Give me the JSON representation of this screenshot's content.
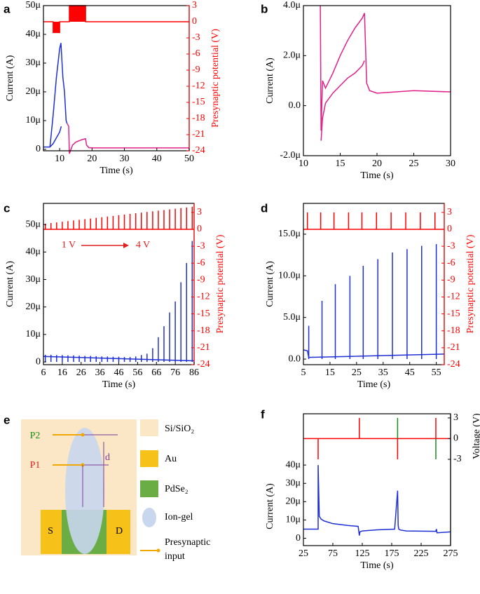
{
  "panel_labels": [
    "a",
    "b",
    "c",
    "d",
    "e",
    "f"
  ],
  "chart_data": [
    {
      "type": "line",
      "xlabel": "Time (s)",
      "ylabel": "Current (A)",
      "y2label": "Presynaptic potential (V)",
      "y2color": "#ff0000",
      "xlim": [
        5,
        50
      ],
      "xticks": [
        10,
        20,
        30,
        40,
        50
      ],
      "ylim": [
        -5e-07,
        5e-05
      ],
      "yticks": [
        0,
        {
          "value": 1e-05,
          "label": "10μ"
        },
        {
          "value": 2e-05,
          "label": "20μ"
        },
        {
          "value": 3e-05,
          "label": "30μ"
        },
        {
          "value": 4e-05,
          "label": "40μ"
        },
        {
          "value": 5e-05,
          "label": "50μ"
        }
      ],
      "y2lim": [
        -24,
        3
      ],
      "y2ticks": [
        3,
        0,
        -3,
        -6,
        -9,
        -12,
        -15,
        -18,
        -21,
        -24
      ],
      "series": [
        {
          "color": "#ff0000",
          "axis": "y2",
          "area": true,
          "x": [
            5,
            8,
            8,
            10,
            10,
            13,
            13,
            18,
            18,
            50
          ],
          "values": [
            0,
            0,
            -2,
            -2,
            0,
            0,
            3,
            3,
            0,
            0
          ]
        },
        {
          "color": "#1f2fd6",
          "x": [
            5,
            7,
            7.2,
            8,
            9,
            10,
            10.4,
            11,
            11.5,
            12,
            12.3
          ],
          "values": [
            8e-07,
            8e-07,
            3e-06,
            1.2e-05,
            2.5e-05,
            3.5e-05,
            3.7e-05,
            2.5e-05,
            2e-05,
            1e-05,
            9e-06
          ]
        },
        {
          "color": "#1f2fd6",
          "x": [
            7,
            8,
            9,
            10,
            10.5
          ],
          "values": [
            8e-07,
            2e-06,
            4e-06,
            6e-06,
            8e-06
          ]
        },
        {
          "color": "#e0218a",
          "x": [
            12.3,
            12.8,
            13,
            13.5,
            14,
            15,
            16,
            17,
            18,
            18.3,
            19,
            20,
            30,
            40,
            50
          ],
          "values": [
            9e-06,
            8e-06,
            -1.5e-06,
            0,
            1.5e-06,
            2.5e-06,
            3e-06,
            3.4e-06,
            3.7e-06,
            1.5e-06,
            6e-07,
            5e-07,
            5e-07,
            5e-07,
            5e-07
          ]
        }
      ]
    },
    {
      "type": "line",
      "xlabel": "Time (s)",
      "ylabel": "Current (A)",
      "xlim": [
        10,
        30
      ],
      "xticks": [
        10,
        15,
        20,
        25,
        30
      ],
      "ylim": [
        -2e-06,
        4e-06
      ],
      "yticks": [
        {
          "value": -2e-06,
          "label": "-2.0μ"
        },
        {
          "value": 0,
          "label": "0.0"
        },
        {
          "value": 2e-06,
          "label": "2.0μ"
        },
        {
          "value": 4e-06,
          "label": "4.0μ"
        }
      ],
      "series": [
        {
          "color": "#e0218a",
          "x": [
            12.3,
            12.4,
            12.6,
            13,
            14,
            15,
            16,
            17,
            18,
            18.3,
            18.6,
            19,
            20,
            25,
            30
          ],
          "values": [
            4e-06,
            -1e-06,
            1e-06,
            7e-07,
            1.3e-06,
            2e-06,
            2.6e-06,
            3.1e-06,
            3.5e-06,
            3.7e-06,
            9e-07,
            6e-07,
            5e-07,
            6e-07,
            5.5e-07
          ]
        },
        {
          "color": "#e0218a",
          "x": [
            12.4,
            12.6,
            13,
            14,
            15,
            16,
            17,
            18,
            18.3
          ],
          "values": [
            -1.4e-06,
            -5e-07,
            1e-07,
            5e-07,
            8e-07,
            1.1e-06,
            1.3e-06,
            1.6e-06,
            1.8e-06
          ]
        }
      ]
    },
    {
      "type": "line",
      "xlabel": "Time (s)",
      "ylabel": "Current (A)",
      "y2label": "Presynaptic potential (V)",
      "y2color": "#ff0000",
      "xlim": [
        6,
        86
      ],
      "xticks": [
        6,
        16,
        26,
        36,
        46,
        56,
        66,
        76,
        86
      ],
      "ylim": [
        -1e-06,
        5.77e-05
      ],
      "yticks": [
        0,
        {
          "value": 1e-05,
          "label": "10μ"
        },
        {
          "value": 2e-05,
          "label": "20μ"
        },
        {
          "value": 3e-05,
          "label": "30μ"
        },
        {
          "value": 4e-05,
          "label": "40μ"
        },
        {
          "value": 5e-05,
          "label": "50μ"
        }
      ],
      "y2lim": [
        -24,
        4.6
      ],
      "y2ticks": [
        3,
        0,
        -3,
        -6,
        -9,
        -12,
        -15,
        -18,
        -21,
        -24
      ],
      "annotations": [
        "1 V",
        "4 V"
      ],
      "series": [
        {
          "color": "#ff0000",
          "axis": "y2",
          "x": [
            6,
            86
          ],
          "values": [
            0,
            0
          ]
        },
        {
          "color": "#ff0000",
          "axis": "y2",
          "style": "spikes",
          "x": [
            7,
            10,
            13,
            16,
            19,
            22,
            25,
            28,
            31,
            34,
            37,
            40,
            43,
            46,
            49,
            52,
            55,
            58,
            61,
            64,
            67,
            70,
            73,
            76,
            79,
            82,
            85
          ],
          "values": [
            1,
            1.12,
            1.23,
            1.35,
            1.46,
            1.58,
            1.69,
            1.81,
            1.92,
            2.04,
            2.15,
            2.27,
            2.38,
            2.5,
            2.62,
            2.73,
            2.85,
            2.96,
            3.08,
            3.19,
            3.31,
            3.42,
            3.54,
            3.65,
            3.77,
            3.88,
            4
          ]
        },
        {
          "color": "#1f2fd6",
          "x": [
            6,
            86
          ],
          "values": [
            2e-06,
            4e-07
          ]
        },
        {
          "color": "#1f2fd6",
          "style": "spikes",
          "x": [
            7,
            10,
            13,
            16,
            19,
            22,
            25,
            28,
            31,
            34,
            37,
            40,
            43,
            46,
            49,
            52,
            55,
            58,
            61,
            64,
            67,
            70,
            73,
            76,
            79,
            82,
            85
          ],
          "values": [
            2.6e-06,
            2.6e-06,
            2.5e-06,
            2.5e-06,
            2.4e-06,
            2.4e-06,
            2.3e-06,
            2.2e-06,
            2.2e-06,
            2.1e-06,
            2e-06,
            2e-06,
            1.9e-06,
            1.9e-06,
            1.8e-06,
            1.8e-06,
            2e-06,
            2.5e-06,
            3e-06,
            5e-06,
            9e-06,
            1.3e-05,
            1.8e-05,
            2.2e-05,
            2.9e-05,
            3.6e-05,
            4.4e-05
          ]
        }
      ]
    },
    {
      "type": "line",
      "xlabel": "Time (s)",
      "ylabel": "Current (A)",
      "y2label": "Presynaptic potential (V)",
      "y2color": "#ff0000",
      "xlim": [
        5,
        58
      ],
      "xticks": [
        5,
        15,
        25,
        35,
        45,
        55
      ],
      "ylim": [
        -6.7e-07,
        1.87e-05
      ],
      "yticks": [
        {
          "value": 0,
          "label": "0.0"
        },
        {
          "value": 5e-06,
          "label": "5.0μ"
        },
        {
          "value": 1e-05,
          "label": "10.0μ"
        },
        {
          "value": 1.5e-05,
          "label": "15.0μ"
        }
      ],
      "y2lim": [
        -24,
        4.6
      ],
      "y2ticks": [
        3,
        0,
        -3,
        -6,
        -9,
        -12,
        -15,
        -18,
        -21,
        -24
      ],
      "series": [
        {
          "color": "#ff0000",
          "axis": "y2",
          "x": [
            5,
            58
          ],
          "values": [
            0,
            0
          ]
        },
        {
          "color": "#ff0000",
          "axis": "y2",
          "style": "spikes",
          "x": [
            6.5,
            11.5,
            16.5,
            22,
            27,
            32.5,
            38,
            43.5,
            49,
            54.5
          ],
          "values": [
            3,
            3,
            3,
            3,
            3,
            3,
            3,
            3,
            3,
            3
          ]
        },
        {
          "color": "#1f2fd6",
          "x": [
            5,
            6.5,
            7,
            58
          ],
          "values": [
            1.1e-06,
            1e-06,
            2e-07,
            6e-07
          ]
        },
        {
          "color": "#1f2fd6",
          "style": "spikes",
          "x": [
            7,
            12,
            17,
            22.5,
            27.5,
            33,
            38.5,
            44,
            49.5,
            55
          ],
          "values": [
            4e-06,
            7e-06,
            9e-06,
            1e-05,
            1.12e-05,
            1.2e-05,
            1.28e-05,
            1.32e-05,
            1.36e-05,
            1.38e-05
          ]
        }
      ]
    },
    {
      "type": "line",
      "xlabel": "Time (s)",
      "ylabel": "Current (A)",
      "y2label": "Voltage (V)",
      "y2color": "#000000",
      "xlim": [
        25,
        275
      ],
      "xticks": [
        25,
        75,
        125,
        175,
        225,
        275
      ],
      "ylim": [
        -4e-06,
        6.8e-05
      ],
      "yticks": [
        0,
        {
          "value": 1e-05,
          "label": "10μ"
        },
        {
          "value": 2e-05,
          "label": "20μ"
        },
        {
          "value": 3e-05,
          "label": "30μ"
        },
        {
          "value": 4e-05,
          "label": "40μ"
        }
      ],
      "y2lim": [
        -15.5,
        3.6
      ],
      "y2ticks": [
        3,
        0,
        -3
      ],
      "series": [
        {
          "color": "#ff0000",
          "axis": "y2",
          "x": [
            25,
            275
          ],
          "values": [
            0,
            0
          ]
        },
        {
          "color": "#ff0000",
          "axis": "y2",
          "style": "spikes",
          "x": [
            50,
            120,
            185,
            250
          ],
          "values": [
            -3,
            3,
            -3,
            3
          ]
        },
        {
          "color": "#1a8a1a",
          "axis": "y2",
          "style": "spikes",
          "x": [
            185,
            250
          ],
          "values": [
            3,
            -3
          ]
        },
        {
          "color": "#1f2fd6",
          "x": [
            25,
            50,
            50,
            52,
            55,
            60,
            75,
            100,
            118,
            120,
            121,
            125,
            150,
            180,
            185,
            186,
            187,
            190,
            200,
            250,
            251,
            252,
            275
          ],
          "values": [
            5e-06,
            5e-06,
            4e-05,
            1.2e-05,
            1.05e-05,
            9.5e-06,
            8e-06,
            7e-06,
            6.5e-06,
            1.5e-06,
            3.5e-06,
            4e-06,
            4.6e-06,
            5e-06,
            2.6e-05,
            7e-06,
            5e-06,
            4.5e-06,
            4e-06,
            3.8e-06,
            5e-06,
            3e-06,
            3.5e-06
          ]
        }
      ]
    }
  ],
  "schematic": {
    "legend": [
      "Si/SiO₂",
      "Au",
      "PdSe₂",
      "Ion-gel"
    ],
    "input_label": [
      "Presynaptic",
      "input"
    ],
    "labels": {
      "p2": "P2",
      "p1": "P1",
      "d": "d",
      "s": "S",
      "drain": "D"
    }
  }
}
